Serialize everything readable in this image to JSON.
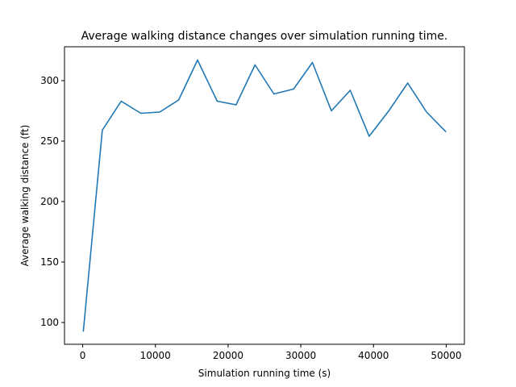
{
  "chart_data": {
    "type": "line",
    "title": "Average walking distance changes over simulation running time.",
    "xlabel": "Simulation running time (s)",
    "ylabel": "Average walking distance (ft)",
    "xlim": [
      -2500,
      52500
    ],
    "ylim": [
      82,
      328
    ],
    "xticks": [
      0,
      10000,
      20000,
      30000,
      40000,
      50000
    ],
    "yticks": [
      100,
      150,
      200,
      250,
      300
    ],
    "grid": false,
    "series": [
      {
        "color": "#1f77b4",
        "x": [
          100,
          2700,
          5300,
          8000,
          10600,
          13200,
          15800,
          18500,
          21100,
          23700,
          26300,
          29000,
          31600,
          34200,
          36800,
          39400,
          42100,
          44700,
          47300,
          49900
        ],
        "y": [
          93,
          259,
          283,
          273,
          274,
          284,
          317,
          283,
          280,
          313,
          289,
          293,
          315,
          275,
          292,
          254,
          275,
          298,
          274,
          258
        ]
      }
    ]
  }
}
